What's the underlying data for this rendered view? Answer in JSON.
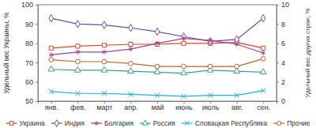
{
  "chart_data": {
    "type": "line",
    "categories": [
      "янв.",
      "фев.",
      "март",
      "апр.",
      "май",
      "июнь",
      "июль",
      "авг.",
      "сен."
    ],
    "y_label": "Удельный вес Украины, %",
    "y2_label": "Удельный вес других стран, %",
    "ylim": [
      50,
      100
    ],
    "yticks": [
      50,
      60,
      70,
      80,
      90,
      100
    ],
    "y2lim": [
      0,
      10
    ],
    "y2ticks": [
      0,
      2,
      4,
      6,
      8,
      10
    ],
    "grid": false,
    "legend": "bottom",
    "series": [
      {
        "name": "Украина",
        "color": "#e0402a",
        "marker": "square",
        "values": [
          77.5,
          78.5,
          79,
          79.5,
          79.5,
          80,
          80,
          80.5,
          77.5
        ]
      },
      {
        "name": "Индия",
        "color": "#6a4c9c",
        "marker": "diamond",
        "axis": "y2",
        "values": [
          8.6,
          8.0,
          7.9,
          7.6,
          7.2,
          6.7,
          6.2,
          6.4,
          8.6
        ]
      },
      {
        "name": "Болгария",
        "color": "#a0448a",
        "marker": "asterisk",
        "axis": "y2",
        "values": [
          4.8,
          5.1,
          5.1,
          5.4,
          6.0,
          6.5,
          6.3,
          5.9,
          5.0
        ]
      },
      {
        "name": "Россия",
        "color": "#3aa08c",
        "marker": "triangle",
        "axis": "y2",
        "values": [
          3.3,
          3.2,
          3.2,
          3.1,
          3.0,
          2.9,
          3.2,
          3.1,
          3.0
        ]
      },
      {
        "name": "Словацкая Республика",
        "color": "#1fb0d8",
        "marker": "cross",
        "axis": "y2",
        "values": [
          1.0,
          0.8,
          0.8,
          0.7,
          0.6,
          0.5,
          0.6,
          0.6,
          1.1
        ]
      },
      {
        "name": "Прочие",
        "color": "#c0602e",
        "marker": "circle",
        "axis": "y2",
        "values": [
          4.3,
          4.1,
          4.1,
          3.9,
          3.6,
          3.6,
          3.6,
          3.6,
          4.4
        ]
      }
    ]
  }
}
